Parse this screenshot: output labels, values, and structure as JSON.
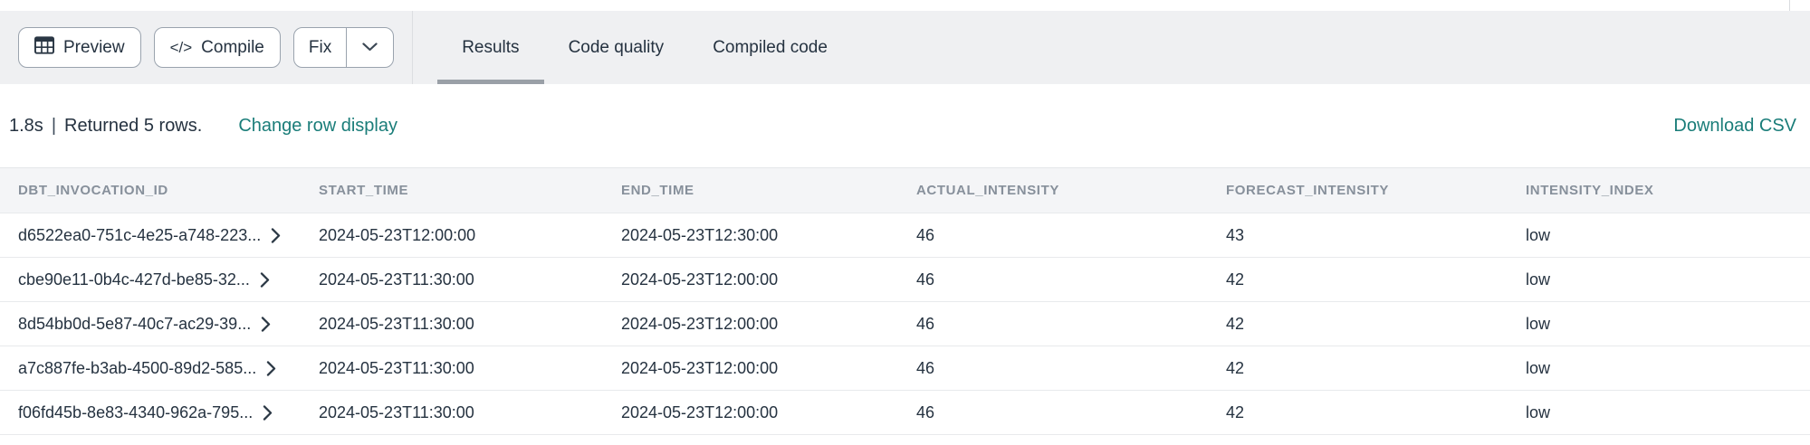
{
  "toolbar": {
    "preview_label": "Preview",
    "compile_label": "Compile",
    "fix_label": "Fix",
    "compile_glyph": "</>"
  },
  "icons": {
    "preview": "table-grid-icon",
    "compile": "code-icon",
    "fix_caret": "chevron-down-icon",
    "row_expand": "chevron-right-icon"
  },
  "tabs": [
    {
      "label": "Results",
      "active": true
    },
    {
      "label": "Code quality",
      "active": false
    },
    {
      "label": "Compiled code",
      "active": false
    }
  ],
  "status": {
    "duration": "1.8s",
    "separator": "|",
    "message": "Returned 5 rows.",
    "change_row_display": "Change row display",
    "download_csv": "Download CSV"
  },
  "table": {
    "columns": [
      "DBT_INVOCATION_ID",
      "START_TIME",
      "END_TIME",
      "ACTUAL_INTENSITY",
      "FORECAST_INTENSITY",
      "INTENSITY_INDEX"
    ],
    "rows": [
      [
        "d6522ea0-751c-4e25-a748-223...",
        "2024-05-23T12:00:00",
        "2024-05-23T12:30:00",
        "46",
        "43",
        "low"
      ],
      [
        "cbe90e11-0b4c-427d-be85-32...",
        "2024-05-23T11:30:00",
        "2024-05-23T12:00:00",
        "46",
        "42",
        "low"
      ],
      [
        "8d54bb0d-5e87-40c7-ac29-39...",
        "2024-05-23T11:30:00",
        "2024-05-23T12:00:00",
        "46",
        "42",
        "low"
      ],
      [
        "a7c887fe-b3ab-4500-89d2-585...",
        "2024-05-23T11:30:00",
        "2024-05-23T12:00:00",
        "46",
        "42",
        "low"
      ],
      [
        "f06fd45b-8e83-4340-962a-795...",
        "2024-05-23T11:30:00",
        "2024-05-23T12:00:00",
        "46",
        "42",
        "low"
      ]
    ]
  },
  "colors": {
    "accent_teal": "#1a7d79",
    "toolbar_bg": "#eff0f2",
    "dark_text": "#253240",
    "header_text": "#87909b",
    "active_tab_indicator": "#9aa0a7"
  }
}
